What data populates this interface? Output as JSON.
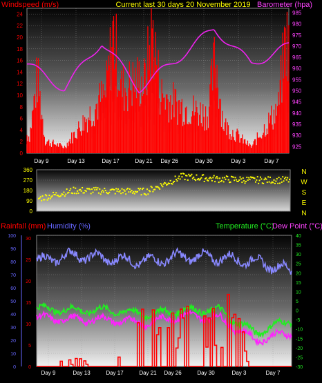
{
  "header": {
    "left_label": "Windspeed (m/s)",
    "center_label": "Current last 30 days 20 November 2019",
    "right_label": "Barometer (hpa)"
  },
  "colors": {
    "wind": "#ff0000",
    "gust_fill": "#ccffcc",
    "baro": "#ee22ee",
    "dir": "#ffff00",
    "temp": "#22ee22",
    "dew": "#ff22ff",
    "hum": "#8888ff",
    "rain": "#ff0000",
    "label_red": "#ff0000",
    "label_yellow": "#ffff00",
    "label_magenta": "#ff44ff",
    "label_green": "#22ee22",
    "label_blue": "#6666ff",
    "axis_text": "#ffffff"
  },
  "date_ticks": [
    "Day 9",
    "Day 13",
    "Day 17",
    "Day 21",
    "Day 26",
    "Day 30",
    "Day 3",
    "Day 7"
  ],
  "panels": {
    "wind": {
      "left_ticks": [
        "0",
        "2",
        "4",
        "6",
        "8",
        "10",
        "12",
        "14",
        "16",
        "18",
        "20",
        "22",
        "24"
      ],
      "right_ticks": [
        "925",
        "930",
        "935",
        "940",
        "945",
        "950",
        "955",
        "960",
        "965",
        "970",
        "975",
        "980",
        "985"
      ]
    },
    "direction": {
      "left_ticks": [
        "0",
        "90",
        "180",
        "270",
        "360"
      ],
      "compass": [
        "N",
        "W",
        "S",
        "E",
        "N"
      ]
    },
    "climate": {
      "rainfall_label": "Rainfall (mm)",
      "humidity_label": "Humidity (%)",
      "temperature_label": "Temperature (°C)",
      "dewpoint_label": "Dew Point (°C)",
      "hum_ticks": [
        "0",
        "10",
        "20",
        "30",
        "40",
        "50",
        "60",
        "70",
        "80",
        "90",
        "100"
      ],
      "rain_ticks": [
        "0",
        "5",
        "10",
        "15",
        "20",
        "25",
        "30"
      ],
      "temp_ticks": [
        "-30",
        "-25",
        "-20",
        "-15",
        "-10",
        "-5",
        "0",
        "5",
        "10",
        "15",
        "20",
        "25",
        "30",
        "35",
        "40"
      ]
    }
  },
  "chart_data": [
    {
      "type": "area",
      "title": "Current last 30 days 20 November 2019",
      "x": [
        "Day 9",
        "Day 13",
        "Day 17",
        "Day 21",
        "Day 26",
        "Day 30",
        "Day 3",
        "Day 7"
      ],
      "series": [
        {
          "name": "Windspeed (m/s)",
          "values": [
            3,
            1,
            9,
            12,
            8,
            6,
            1,
            10
          ]
        },
        {
          "name": "Barometer (hpa)",
          "values": [
            962,
            951,
            972,
            951,
            964,
            978,
            962,
            970
          ]
        }
      ],
      "ylim": [
        0,
        25
      ],
      "y2lim": [
        922,
        987
      ]
    },
    {
      "type": "scatter",
      "series": [
        {
          "name": "Wind direction",
          "values": [
            110,
            180,
            175,
            170,
            300,
            280,
            270,
            270
          ]
        }
      ],
      "ylim": [
        0,
        360
      ]
    },
    {
      "type": "line",
      "x": [
        "Day 9",
        "Day 13",
        "Day 17",
        "Day 21",
        "Day 26",
        "Day 30",
        "Day 3",
        "Day 7"
      ],
      "series": [
        {
          "name": "Humidity (%)",
          "values": [
            80,
            85,
            82,
            80,
            84,
            83,
            80,
            73
          ]
        },
        {
          "name": "Temperature (°C)",
          "values": [
            1,
            0,
            0,
            -2,
            0,
            0,
            -12,
            -5
          ]
        },
        {
          "name": "Dew Point (°C)",
          "values": [
            -4,
            -5,
            -5,
            -7,
            -3,
            -4,
            -16,
            -12
          ]
        },
        {
          "name": "Rainfall (mm)",
          "values": [
            0,
            1,
            0,
            10,
            6,
            11,
            0,
            0
          ]
        }
      ],
      "ylim": [
        0,
        100
      ],
      "y2lim": [
        -30,
        40
      ]
    }
  ]
}
